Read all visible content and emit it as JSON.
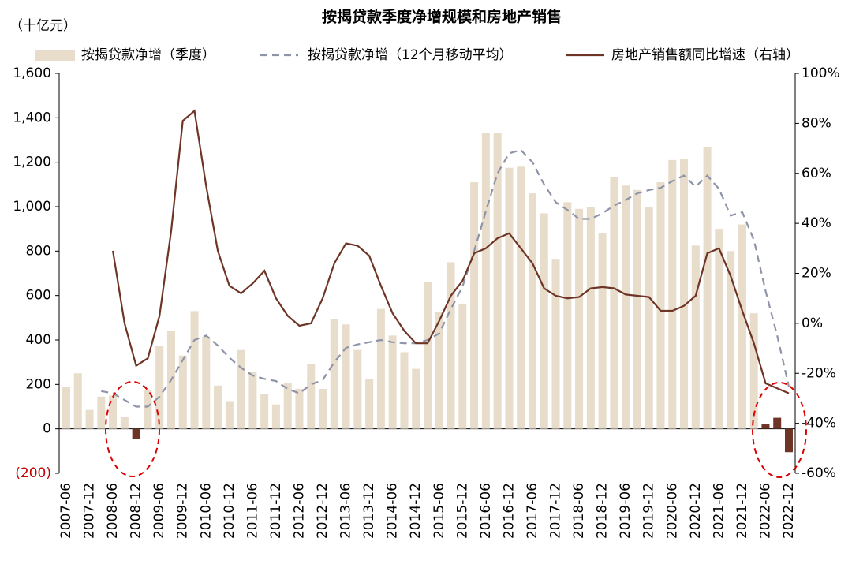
{
  "chart_data": {
    "type": "combo",
    "title": "按揭贷款季度净增规模和房地产销售",
    "y_unit_label": "（十亿元）",
    "categories": [
      "2007-06",
      null,
      "2007-12",
      null,
      "2008-06",
      null,
      "2008-12",
      null,
      "2009-06",
      null,
      "2009-12",
      null,
      "2010-06",
      null,
      "2010-12",
      null,
      "2011-06",
      null,
      "2011-12",
      null,
      "2012-06",
      null,
      "2012-12",
      null,
      "2013-06",
      null,
      "2013-12",
      null,
      "2014-06",
      null,
      "2014-12",
      null,
      "2015-06",
      null,
      "2015-12",
      null,
      "2016-06",
      null,
      "2016-12",
      null,
      "2017-06",
      null,
      "2017-12",
      null,
      "2018-06",
      null,
      "2018-12",
      null,
      "2019-06",
      null,
      "2019-12",
      null,
      "2020-06",
      null,
      "2020-12",
      null,
      "2021-06",
      null,
      "2021-12",
      null,
      "2022-06",
      null,
      "2022-12"
    ],
    "ylim": [
      -200,
      1600
    ],
    "yticks": [
      {
        "value": -200,
        "label": "(200)",
        "color": "#c00000"
      },
      0,
      200,
      400,
      600,
      800,
      {
        "value": 1000,
        "label": "1,000"
      },
      {
        "value": 1200,
        "label": "1,200"
      },
      {
        "value": 1400,
        "label": "1,400"
      },
      {
        "value": 1600,
        "label": "1,600"
      }
    ],
    "y2lim": [
      -60,
      100
    ],
    "y2ticks": [
      {
        "value": -60,
        "label": "-60%"
      },
      {
        "value": -40,
        "label": "-40%"
      },
      {
        "value": -20,
        "label": "-20%"
      },
      {
        "value": 0,
        "label": "0%"
      },
      {
        "value": 20,
        "label": "20%"
      },
      {
        "value": 40,
        "label": "40%"
      },
      {
        "value": 60,
        "label": "60%"
      },
      {
        "value": 80,
        "label": "80%"
      },
      {
        "value": 100,
        "label": "100%"
      }
    ],
    "series": [
      {
        "name": "按揭贷款净增（季度）",
        "kind": "bar",
        "color": "#e8dccb",
        "colors": [
          "#e8dccb",
          "#e8dccb",
          "#e8dccb",
          "#e8dccb",
          "#e8dccb",
          "#e8dccb",
          "#6e3526",
          "#e8dccb",
          "#e8dccb",
          "#e8dccb",
          "#e8dccb",
          "#e8dccb",
          "#e8dccb",
          "#e8dccb",
          "#e8dccb",
          "#e8dccb",
          "#e8dccb",
          "#e8dccb",
          "#e8dccb",
          "#e8dccb",
          "#e8dccb",
          "#e8dccb",
          "#e8dccb",
          "#e8dccb",
          "#e8dccb",
          "#e8dccb",
          "#e8dccb",
          "#e8dccb",
          "#e8dccb",
          "#e8dccb",
          "#e8dccb",
          "#e8dccb",
          "#e8dccb",
          "#e8dccb",
          "#e8dccb",
          "#e8dccb",
          "#e8dccb",
          "#e8dccb",
          "#e8dccb",
          "#e8dccb",
          "#e8dccb",
          "#e8dccb",
          "#e8dccb",
          "#e8dccb",
          "#e8dccb",
          "#e8dccb",
          "#e8dccb",
          "#e8dccb",
          "#e8dccb",
          "#e8dccb",
          "#e8dccb",
          "#e8dccb",
          "#e8dccb",
          "#e8dccb",
          "#e8dccb",
          "#e8dccb",
          "#e8dccb",
          "#e8dccb",
          "#e8dccb",
          "#e8dccb",
          "#6e3526",
          "#6e3526",
          "#6e3526"
        ],
        "values": [
          190,
          250,
          85,
          145,
          150,
          55,
          -45,
          175,
          375,
          440,
          330,
          530,
          415,
          195,
          125,
          355,
          255,
          155,
          110,
          205,
          180,
          290,
          180,
          495,
          470,
          355,
          225,
          540,
          420,
          345,
          270,
          660,
          525,
          750,
          560,
          1110,
          1330,
          1330,
          1175,
          1180,
          1060,
          970,
          765,
          1020,
          990,
          1000,
          880,
          1135,
          1095,
          1075,
          1000,
          1110,
          1210,
          1215,
          825,
          1270,
          900,
          800,
          920,
          520,
          20,
          50,
          -105
        ]
      },
      {
        "name": "按揭贷款净增（12个月移动平均）",
        "kind": "dashed",
        "color": "#8e94a8",
        "values": [
          null,
          null,
          null,
          170,
          160,
          130,
          100,
          100,
          145,
          220,
          310,
          400,
          420,
          375,
          320,
          275,
          240,
          225,
          215,
          180,
          160,
          200,
          220,
          300,
          365,
          380,
          390,
          400,
          390,
          385,
          385,
          400,
          430,
          540,
          640,
          800,
          980,
          1150,
          1240,
          1255,
          1200,
          1100,
          1020,
          985,
          945,
          945,
          970,
          1005,
          1030,
          1060,
          1075,
          1085,
          1115,
          1140,
          1090,
          1140,
          1080,
          960,
          975,
          850,
          620,
          420,
          190
        ]
      },
      {
        "name": "房地产销售额同比增速（右轴）",
        "kind": "line",
        "axis": "y2",
        "color": "#6e3526",
        "values": [
          null,
          null,
          null,
          null,
          29,
          0,
          -17,
          -14,
          3,
          37,
          81,
          85,
          55,
          29,
          15,
          12,
          16,
          21,
          10,
          3,
          -1,
          0,
          10,
          24,
          32,
          31,
          27,
          15,
          4,
          -3,
          -8,
          -8,
          1,
          11,
          17,
          28,
          30,
          34,
          36,
          30,
          24,
          14,
          11,
          10,
          10.5,
          14,
          14.5,
          14,
          11.5,
          11,
          10.5,
          5,
          5,
          7,
          11,
          28,
          30,
          19,
          5,
          -8,
          -24,
          -26,
          -28
        ]
      }
    ]
  }
}
